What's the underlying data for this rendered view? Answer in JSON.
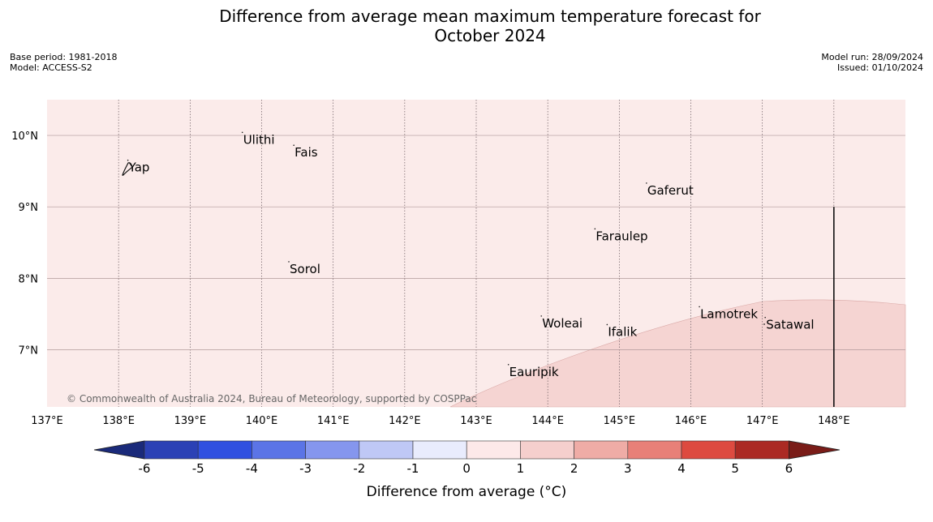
{
  "title_line1": "Difference from average mean maximum temperature forecast for",
  "title_line2": "October 2024",
  "base_period": "Base period: 1981-2018",
  "model": "Model: ACCESS-S2",
  "model_run": "Model run: 28/09/2024",
  "issued": "Issued: 01/10/2024",
  "credit": "© Commonwealth of Australia 2024, Bureau of Meteorology, supported by COSPPac",
  "colorbar_title": "Difference from average (°C)",
  "colorbar_ticks": [
    "-6",
    "-5",
    "-4",
    "-3",
    "-2",
    "-1",
    "0",
    "1",
    "2",
    "3",
    "4",
    "5",
    "6"
  ],
  "colorbar_colors": [
    "#1a2a7a",
    "#2b41b5",
    "#3050e0",
    "#5b74e6",
    "#8596ee",
    "#bfc8f6",
    "#e9ecfd",
    "#fde9e9",
    "#f5cfcd",
    "#efaca6",
    "#e88078",
    "#dd4a40",
    "#ab2a24",
    "#7a1c18"
  ],
  "palette": {
    "base_fill": "#fbebea",
    "warm_fill": "#f5d4d2",
    "grid": "#b09a9a"
  },
  "map": {
    "lon_labels": [
      "137°E",
      "138°E",
      "139°E",
      "140°E",
      "141°E",
      "142°E",
      "143°E",
      "144°E",
      "145°E",
      "146°E",
      "147°E",
      "148°E"
    ],
    "lat_labels": [
      "10°N",
      "9°N",
      "8°N",
      "7°N"
    ],
    "places": [
      {
        "name": "Yap",
        "lon": 138.13,
        "lat": 9.55
      },
      {
        "name": "Ulithi",
        "lon": 139.73,
        "lat": 9.94
      },
      {
        "name": "Fais",
        "lon": 140.45,
        "lat": 9.76
      },
      {
        "name": "Gaferut",
        "lon": 145.38,
        "lat": 9.23
      },
      {
        "name": "Faraulep",
        "lon": 144.66,
        "lat": 8.59
      },
      {
        "name": "Sorol",
        "lon": 140.38,
        "lat": 8.13
      },
      {
        "name": "Woleai",
        "lon": 143.91,
        "lat": 7.37
      },
      {
        "name": "Ifalik",
        "lon": 144.83,
        "lat": 7.25
      },
      {
        "name": "Lamotrek",
        "lon": 146.12,
        "lat": 7.5
      },
      {
        "name": "Satawal",
        "lon": 147.04,
        "lat": 7.35
      },
      {
        "name": "Eauripik",
        "lon": 143.45,
        "lat": 6.69
      }
    ]
  }
}
